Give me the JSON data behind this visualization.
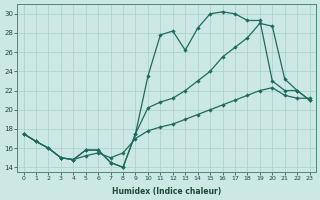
{
  "xlabel": "Humidex (Indice chaleur)",
  "xlim": [
    -0.5,
    23.5
  ],
  "ylim": [
    13.5,
    31.0
  ],
  "xticks": [
    0,
    1,
    2,
    3,
    4,
    5,
    6,
    7,
    8,
    9,
    10,
    11,
    12,
    13,
    14,
    15,
    16,
    17,
    18,
    19,
    20,
    21,
    22,
    23
  ],
  "yticks": [
    14,
    16,
    18,
    20,
    22,
    24,
    26,
    28,
    30
  ],
  "bg_color": "#cce8e5",
  "grid_color": "#aacfcc",
  "line_color": "#1e6b5e",
  "line1_x": [
    0,
    1,
    2,
    3,
    4,
    5,
    6,
    7,
    8,
    9,
    10,
    11,
    12,
    13,
    14,
    15,
    16,
    17,
    18,
    19,
    20,
    21,
    22,
    23
  ],
  "line1_y": [
    17.5,
    16.7,
    16.0,
    15.0,
    14.8,
    15.8,
    15.8,
    14.5,
    14.0,
    17.5,
    23.5,
    27.8,
    28.2,
    26.2,
    28.5,
    30.0,
    30.2,
    30.0,
    29.3,
    29.3,
    23.0,
    22.0,
    22.0,
    21.0
  ],
  "line2_x": [
    0,
    1,
    2,
    3,
    4,
    5,
    6,
    7,
    8,
    9,
    10,
    11,
    12,
    13,
    14,
    15,
    16,
    17,
    18,
    19,
    20,
    21,
    22,
    23
  ],
  "line2_y": [
    17.5,
    16.7,
    16.0,
    15.0,
    14.8,
    15.8,
    15.8,
    14.5,
    14.0,
    17.5,
    20.2,
    20.8,
    21.2,
    22.0,
    23.0,
    24.0,
    25.5,
    26.5,
    27.5,
    29.0,
    28.7,
    23.2,
    22.0,
    21.0
  ],
  "line3_x": [
    0,
    1,
    2,
    3,
    4,
    5,
    6,
    7,
    8,
    9,
    10,
    11,
    12,
    13,
    14,
    15,
    16,
    17,
    18,
    19,
    20,
    21,
    22,
    23
  ],
  "line3_y": [
    17.5,
    16.7,
    16.0,
    15.0,
    14.8,
    15.2,
    15.5,
    15.0,
    15.5,
    17.0,
    17.8,
    18.2,
    18.5,
    19.0,
    19.5,
    20.0,
    20.5,
    21.0,
    21.5,
    22.0,
    22.3,
    21.5,
    21.2,
    21.2
  ]
}
